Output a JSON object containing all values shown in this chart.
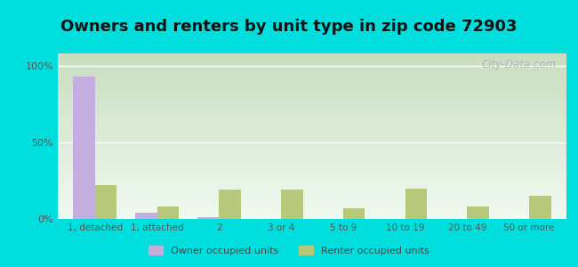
{
  "title": "Owners and renters by unit type in zip code 72903",
  "categories": [
    "1, detached",
    "1, attached",
    "2",
    "3 or 4",
    "5 to 9",
    "10 to 19",
    "20 to 49",
    "50 or more"
  ],
  "owner_values": [
    93,
    4,
    1,
    0,
    0,
    0,
    0,
    0
  ],
  "renter_values": [
    22,
    8,
    19,
    19,
    7,
    20,
    8,
    15
  ],
  "owner_color": "#c4aee0",
  "renter_color": "#b8c87a",
  "background_color": "#00dede",
  "grad_top": "#c8ddc0",
  "grad_bottom": "#f0faf0",
  "ylabel_ticks": [
    "0%",
    "50%",
    "100%"
  ],
  "ytick_vals": [
    0,
    50,
    100
  ],
  "ylim": [
    0,
    108
  ],
  "owner_label": "Owner occupied units",
  "renter_label": "Renter occupied units",
  "title_fontsize": 13,
  "bar_width": 0.35,
  "watermark": "City-Data.com"
}
